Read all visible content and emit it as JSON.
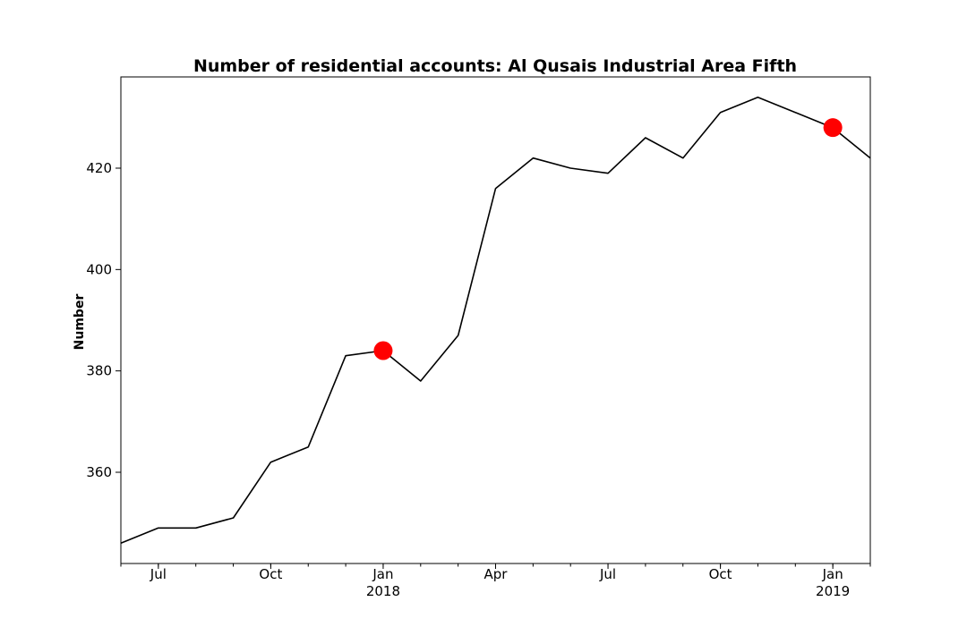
{
  "chart_data": {
    "type": "line",
    "title": "Number of residential accounts: Al Qusais Industrial Area Fifth",
    "xlabel": "",
    "ylabel": "Number",
    "x": [
      "2017-06",
      "2017-07",
      "2017-08",
      "2017-09",
      "2017-10",
      "2017-11",
      "2017-12",
      "2018-01",
      "2018-02",
      "2018-03",
      "2018-04",
      "2018-05",
      "2018-06",
      "2018-07",
      "2018-08",
      "2018-09",
      "2018-10",
      "2018-11",
      "2018-12",
      "2019-01",
      "2019-02"
    ],
    "values": [
      346,
      349,
      349,
      351,
      362,
      365,
      383,
      384,
      378,
      387,
      416,
      422,
      420,
      419,
      426,
      422,
      431,
      434,
      431,
      428,
      422
    ],
    "highlights": [
      {
        "x": "2018-01",
        "value": 384
      },
      {
        "x": "2019-01",
        "value": 428
      }
    ],
    "xlim": [
      "2017-06",
      "2019-02"
    ],
    "ylim": [
      342,
      438
    ],
    "yticks": [
      360,
      380,
      400,
      420
    ],
    "xticks": [
      {
        "x": "2017-07",
        "label": "Jul",
        "sublabel": ""
      },
      {
        "x": "2017-10",
        "label": "Oct",
        "sublabel": ""
      },
      {
        "x": "2018-01",
        "label": "Jan",
        "sublabel": "2018"
      },
      {
        "x": "2018-04",
        "label": "Apr",
        "sublabel": ""
      },
      {
        "x": "2018-07",
        "label": "Jul",
        "sublabel": ""
      },
      {
        "x": "2018-10",
        "label": "Oct",
        "sublabel": ""
      },
      {
        "x": "2019-01",
        "label": "Jan",
        "sublabel": "2019"
      }
    ],
    "grid": false,
    "line_color": "#000000",
    "highlight_color": "#ff0000"
  }
}
